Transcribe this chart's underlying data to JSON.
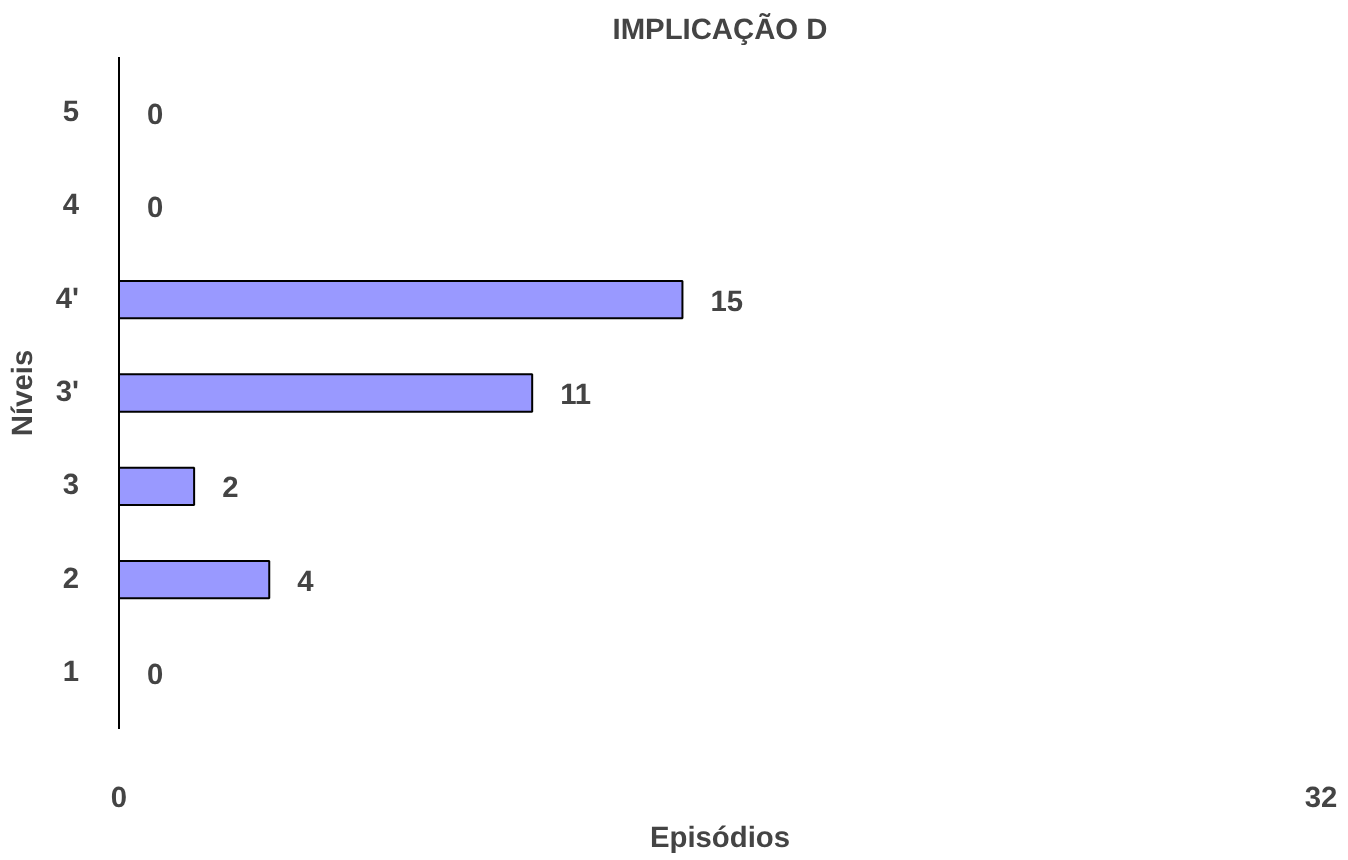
{
  "chart_data": {
    "type": "bar",
    "orientation": "horizontal",
    "title": "IMPLICAÇÃO D",
    "xlabel": "Episódios",
    "ylabel": "Níveis",
    "categories": [
      "5",
      "4",
      "4'",
      "3'",
      "3",
      "2",
      "1"
    ],
    "values": [
      0,
      0,
      15,
      11,
      2,
      4,
      0
    ],
    "color": "#9999ff",
    "xlim": [
      0,
      32
    ],
    "xticks": [
      0,
      32
    ],
    "data_labels": true,
    "grid": false
  }
}
